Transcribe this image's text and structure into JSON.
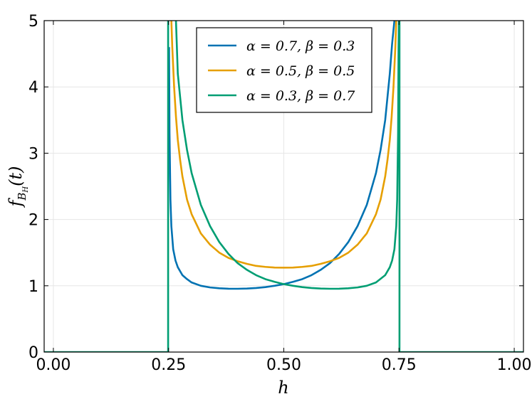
{
  "chart_data": {
    "type": "line",
    "xlabel": "h",
    "ylabel": {
      "base": "f",
      "subscript": "B",
      "subsubscript": "H",
      "suffix": "(t)"
    },
    "xlim": [
      -0.02,
      1.02
    ],
    "ylim": [
      0,
      5
    ],
    "xticks": [
      0.0,
      0.25,
      0.5,
      0.75,
      1.0
    ],
    "xtick_labels": [
      "0.00",
      "0.25",
      "0.50",
      "0.75",
      "1.00"
    ],
    "yticks": [
      0,
      1,
      2,
      3,
      4,
      5
    ],
    "ytick_labels": [
      "0",
      "1",
      "2",
      "3",
      "4",
      "5"
    ],
    "grid": true,
    "legend_position": "top-center",
    "support": [
      0.25,
      0.75
    ],
    "series": [
      {
        "name": "α = 0.7, β = 0.3",
        "color": "#0072b2",
        "x": [
          0.251,
          0.252,
          0.254,
          0.256,
          0.26,
          0.265,
          0.27,
          0.28,
          0.29,
          0.3,
          0.32,
          0.34,
          0.36,
          0.38,
          0.4,
          0.42,
          0.44,
          0.46,
          0.48,
          0.5,
          0.52,
          0.54,
          0.56,
          0.58,
          0.6,
          0.62,
          0.64,
          0.66,
          0.68,
          0.7,
          0.71,
          0.72,
          0.73,
          0.735,
          0.74,
          0.745
        ],
        "y": [
          4.6,
          3.3,
          2.3,
          1.9,
          1.55,
          1.38,
          1.28,
          1.16,
          1.1,
          1.05,
          1.0,
          0.975,
          0.962,
          0.956,
          0.955,
          0.958,
          0.966,
          0.98,
          1.0,
          1.025,
          1.06,
          1.1,
          1.16,
          1.24,
          1.34,
          1.48,
          1.66,
          1.9,
          2.22,
          2.7,
          3.05,
          3.5,
          4.2,
          4.65,
          5.0,
          5.2
        ]
      },
      {
        "name": "α = 0.5, β = 0.5",
        "color": "#e69f00",
        "x": [
          0.255,
          0.258,
          0.262,
          0.266,
          0.27,
          0.275,
          0.28,
          0.29,
          0.3,
          0.32,
          0.34,
          0.36,
          0.38,
          0.4,
          0.42,
          0.44,
          0.46,
          0.48,
          0.5,
          0.52,
          0.54,
          0.56,
          0.58,
          0.6,
          0.62,
          0.64,
          0.66,
          0.68,
          0.7,
          0.71,
          0.72,
          0.725,
          0.73,
          0.734,
          0.738,
          0.742,
          0.745
        ],
        "y": [
          5.2,
          4.6,
          4.0,
          3.55,
          3.2,
          2.9,
          2.65,
          2.3,
          2.08,
          1.79,
          1.62,
          1.5,
          1.42,
          1.37,
          1.33,
          1.3,
          1.285,
          1.275,
          1.273,
          1.275,
          1.285,
          1.3,
          1.33,
          1.37,
          1.42,
          1.5,
          1.62,
          1.79,
          2.08,
          2.3,
          2.65,
          2.9,
          3.2,
          3.55,
          4.0,
          4.6,
          5.2
        ]
      },
      {
        "name": "α = 0.3, β = 0.7",
        "color": "#009e73",
        "x": [
          -0.02,
          0.249,
          0.249,
          0.25,
          0.251,
          0.252,
          0.254,
          0.255,
          0.257,
          0.26,
          0.265,
          0.27,
          0.28,
          0.29,
          0.3,
          0.32,
          0.34,
          0.36,
          0.38,
          0.4,
          0.42,
          0.44,
          0.46,
          0.48,
          0.5,
          0.52,
          0.54,
          0.56,
          0.58,
          0.6,
          0.62,
          0.64,
          0.66,
          0.68,
          0.7,
          0.72,
          0.73,
          0.735,
          0.74,
          0.744,
          0.746,
          0.748,
          0.749,
          0.75,
          0.751,
          0.751,
          1.02
        ],
        "y": [
          0,
          0,
          5.2,
          5.2,
          5.2,
          5.2,
          5.2,
          5.2,
          5.2,
          5.2,
          5.2,
          4.2,
          3.5,
          3.05,
          2.7,
          2.22,
          1.9,
          1.66,
          1.48,
          1.34,
          1.24,
          1.16,
          1.1,
          1.06,
          1.025,
          1.0,
          0.98,
          0.966,
          0.958,
          0.955,
          0.956,
          0.962,
          0.975,
          1.0,
          1.05,
          1.16,
          1.28,
          1.38,
          1.55,
          1.9,
          2.3,
          3.3,
          4.6,
          5.2,
          5.2,
          0,
          0
        ]
      }
    ]
  }
}
